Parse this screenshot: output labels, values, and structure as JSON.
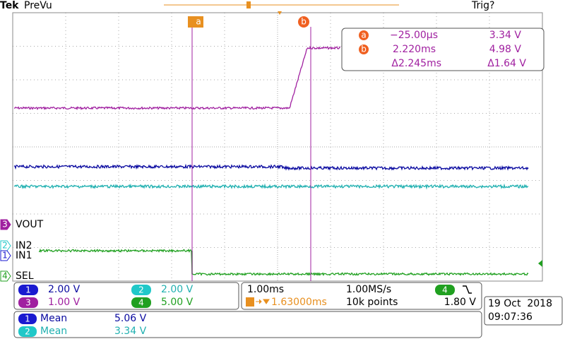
{
  "header": {
    "brand": "Tek",
    "mode": "PreVu",
    "trigger_status": "Trig?"
  },
  "cursors": {
    "a": "a",
    "b": "b"
  },
  "readout": {
    "rows": [
      {
        "marker": "a",
        "time": "−25.00µs",
        "value": "3.34 V"
      },
      {
        "marker": "b",
        "time": "2.220ms",
        "value": "4.98 V"
      },
      {
        "time": "Δ2.245ms",
        "value": "Δ1.64 V"
      }
    ]
  },
  "channels": [
    {
      "number": "3",
      "label": "VOUT"
    },
    {
      "number": "2",
      "label": "IN2"
    },
    {
      "number": "1",
      "label": "IN1"
    },
    {
      "number": "4",
      "label": "SEL"
    }
  ],
  "vertical": [
    {
      "channel": "1",
      "scale": "2.00 V"
    },
    {
      "channel": "2",
      "scale": "2.00 V"
    },
    {
      "channel": "3",
      "scale": "1.00 V"
    },
    {
      "channel": "4",
      "scale": "5.00 V"
    }
  ],
  "horizontal": {
    "time_scale": "1.00ms",
    "sample_rate": "1.00MS/s",
    "trigger_channel": "4",
    "trigger_position": "1.63000ms",
    "record_length": "10k points",
    "trigger_level": "1.80 V"
  },
  "datetime": {
    "date": "19 Oct  2018",
    "time": "09:07:36"
  },
  "measurements": [
    {
      "channel": "1",
      "label": "Mean",
      "value": "5.06 V"
    },
    {
      "channel": "2",
      "label": "Mean",
      "value": "3.34 V"
    }
  ]
}
